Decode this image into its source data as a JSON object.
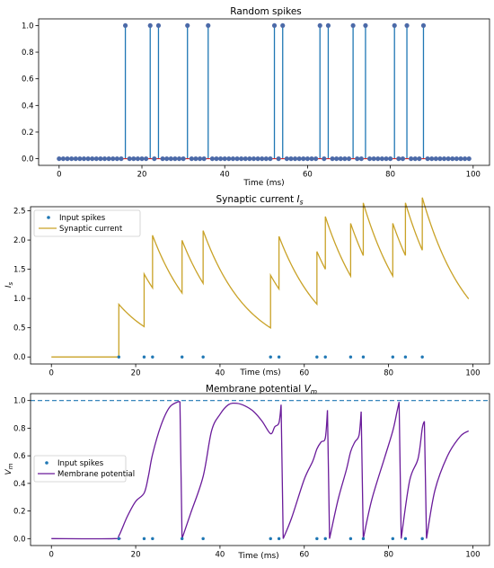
{
  "chart_data": [
    {
      "type": "stem",
      "title": "Random spikes",
      "xlabel": "Time (ms)",
      "ylabel": "",
      "xlim": [
        -4.95,
        103.95
      ],
      "ylim": [
        -0.05,
        1.05
      ],
      "xticks": [
        "0",
        "20",
        "40",
        "60",
        "80",
        "100"
      ],
      "yticks": [
        "0.0",
        "0.2",
        "0.4",
        "0.6",
        "0.8",
        "1.0"
      ],
      "colors": {
        "stem": "#1f77b4",
        "marker": "#4c6aa8",
        "baseline": "#d62728"
      },
      "x_range": [
        0,
        99
      ],
      "spike_times": [
        16,
        22,
        24,
        31,
        36,
        52,
        54,
        63,
        65,
        71,
        74,
        81,
        84,
        88
      ]
    },
    {
      "type": "line",
      "title": "Synaptic current $I_s$",
      "title_main": "Synaptic current ",
      "title_sym": "I",
      "title_sub": "s",
      "xlabel": "Time (ms)",
      "ylabel_sym": "I",
      "ylabel_sub": "s",
      "xlim": [
        -4.95,
        103.95
      ],
      "ylim": [
        -0.12,
        2.57
      ],
      "xticks": [
        "0",
        "20",
        "40",
        "60",
        "80",
        "100"
      ],
      "yticks": [
        "0.0",
        "0.5",
        "1.0",
        "1.5",
        "2.0",
        "2.5"
      ],
      "legend": {
        "position": "upper-left",
        "entries": [
          "Input spikes",
          "Synaptic current"
        ]
      },
      "colors": {
        "spikes": "#1f77b4",
        "line": "#c9a227"
      },
      "series": [
        {
          "name": "Input spikes",
          "style": "dots",
          "x": [
            16,
            22,
            24,
            31,
            36,
            52,
            54,
            63,
            65,
            71,
            74,
            81,
            84,
            88
          ],
          "y": [
            0,
            0,
            0,
            0,
            0,
            0,
            0,
            0,
            0,
            0,
            0,
            0,
            0,
            0
          ]
        },
        {
          "name": "Synaptic current",
          "style": "line",
          "jump": 0.9,
          "tau": 10.9,
          "x_range": [
            0,
            99
          ]
        }
      ]
    },
    {
      "type": "line",
      "title": "Membrane potential $V_m$",
      "title_main": "Membrane potential ",
      "title_sym": "V",
      "title_sub": "m",
      "xlabel": "Time (ms)",
      "ylabel_sym": "V",
      "ylabel_sub": "m",
      "xlim": [
        -4.95,
        103.95
      ],
      "ylim": [
        -0.05,
        1.05
      ],
      "xticks": [
        "0",
        "20",
        "40",
        "60",
        "80",
        "100"
      ],
      "yticks": [
        "0.0",
        "0.2",
        "0.4",
        "0.6",
        "0.8",
        "1.0"
      ],
      "threshold": 1.0,
      "legend": {
        "position": "center-left",
        "entries": [
          "Input spikes",
          "Membrane potential"
        ]
      },
      "colors": {
        "spikes": "#1f77b4",
        "line": "#6a1b9a",
        "threshold": "#1f77b4"
      },
      "series": [
        {
          "name": "Input spikes",
          "style": "dots",
          "x": [
            16,
            22,
            24,
            31,
            36,
            52,
            54,
            63,
            65,
            71,
            74,
            81,
            84,
            88
          ],
          "y": [
            0,
            0,
            0,
            0,
            0,
            0,
            0,
            0,
            0,
            0,
            0,
            0,
            0,
            0
          ]
        },
        {
          "name": "Membrane potential",
          "style": "line",
          "x": [
            0,
            15,
            16,
            18,
            20,
            22,
            23,
            24,
            26,
            28,
            30,
            30.5,
            31,
            33,
            36,
            38,
            40,
            42,
            44,
            46,
            48,
            50,
            52,
            53,
            54,
            54.5,
            55,
            57,
            60,
            62,
            63,
            64,
            65,
            65.5,
            66,
            68,
            70,
            71,
            72,
            73,
            73.5,
            74,
            76,
            79,
            81,
            82,
            82.5,
            83,
            85,
            87,
            88,
            88.5,
            89,
            91,
            94,
            97,
            99
          ],
          "y": [
            0,
            0,
            0.02,
            0.16,
            0.27,
            0.33,
            0.45,
            0.61,
            0.82,
            0.95,
            0.99,
            0.99,
            0.0,
            0.18,
            0.45,
            0.78,
            0.9,
            0.97,
            0.98,
            0.96,
            0.92,
            0.85,
            0.76,
            0.81,
            0.84,
            0.97,
            0.0,
            0.15,
            0.43,
            0.56,
            0.65,
            0.7,
            0.73,
            0.93,
            0.0,
            0.28,
            0.5,
            0.63,
            0.7,
            0.75,
            0.92,
            0.0,
            0.28,
            0.58,
            0.78,
            0.92,
            0.99,
            0.0,
            0.42,
            0.58,
            0.8,
            0.85,
            0.0,
            0.35,
            0.6,
            0.74,
            0.78
          ]
        }
      ]
    }
  ]
}
